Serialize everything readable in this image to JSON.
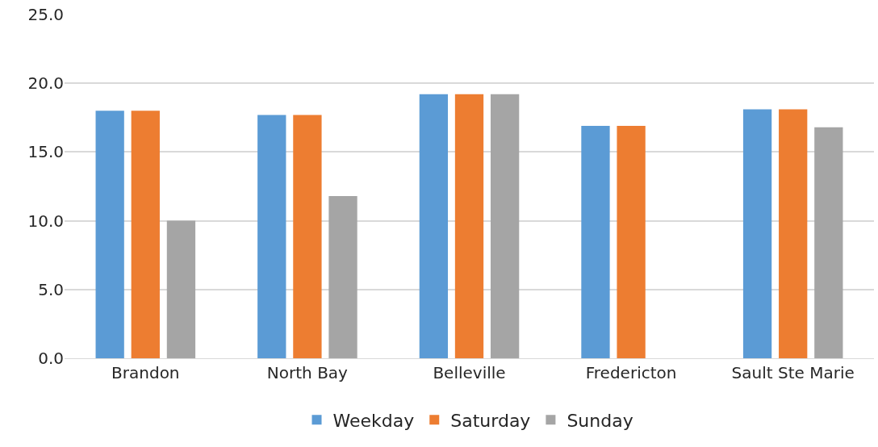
{
  "chart_data": {
    "type": "bar",
    "categories": [
      "Brandon",
      "North Bay",
      "Belleville",
      "Fredericton",
      "Sault Ste Marie"
    ],
    "series": [
      {
        "name": "Weekday",
        "color": "#5b9bd5",
        "values": [
          18.0,
          17.7,
          19.2,
          16.9,
          18.1
        ]
      },
      {
        "name": "Saturday",
        "color": "#ed7d31",
        "values": [
          18.0,
          17.7,
          19.2,
          16.9,
          18.1
        ]
      },
      {
        "name": "Sunday",
        "color": "#a5a5a5",
        "values": [
          10.0,
          11.8,
          19.2,
          null,
          16.8
        ]
      }
    ],
    "ylim": [
      0,
      25
    ],
    "yticks": [
      {
        "value": 0,
        "label": "0.0"
      },
      {
        "value": 5,
        "label": "5.0"
      },
      {
        "value": 10,
        "label": "10.0"
      },
      {
        "value": 15,
        "label": "15.0"
      },
      {
        "value": 20,
        "label": "20.0"
      },
      {
        "value": 25,
        "label": "25.0"
      }
    ],
    "grid": "y",
    "legend": "bottom"
  }
}
